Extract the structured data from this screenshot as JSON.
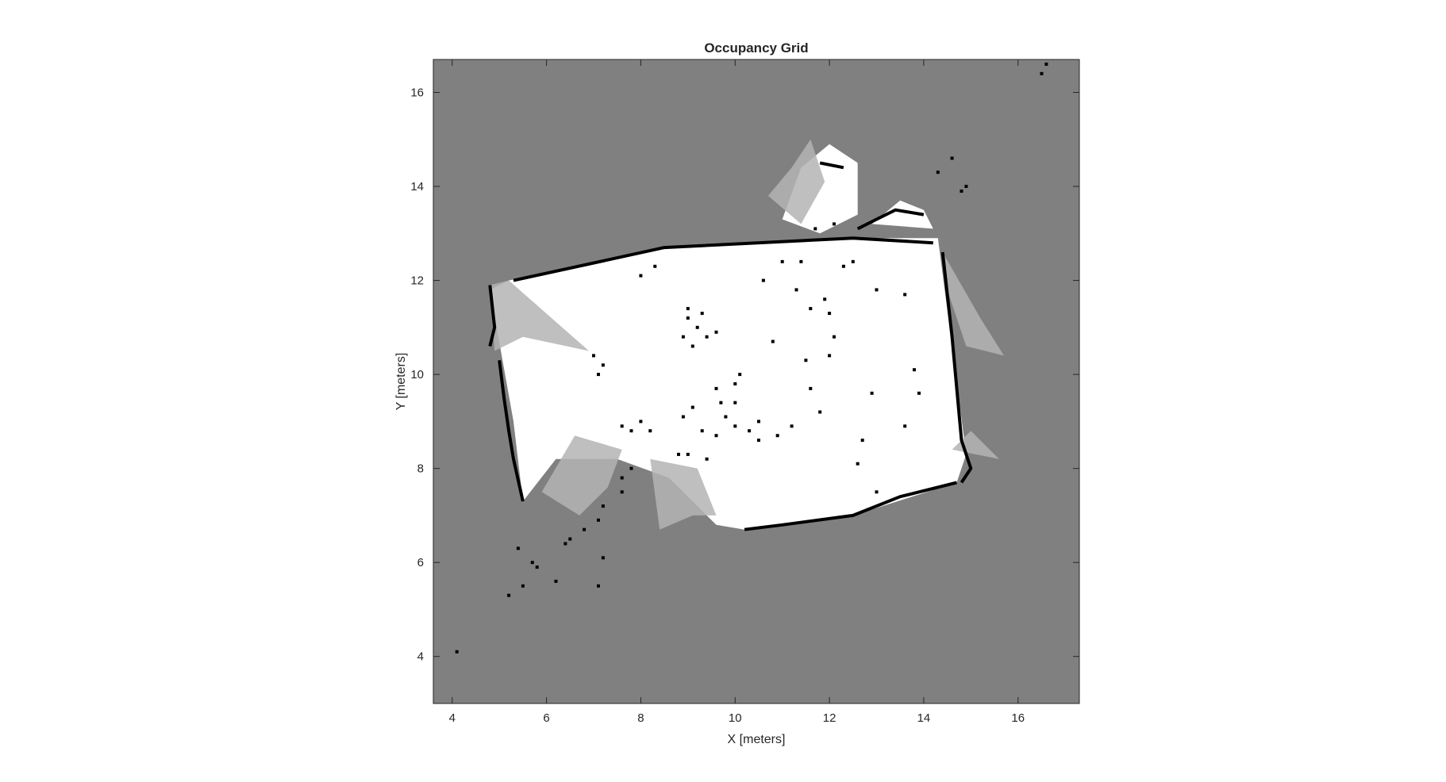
{
  "chart_data": {
    "type": "heatmap",
    "title": "Occupancy Grid",
    "xlabel": "X [meters]",
    "ylabel": "Y [meters]",
    "xlim": [
      3.6,
      17.3
    ],
    "ylim": [
      3.0,
      16.7
    ],
    "xticks": [
      4,
      6,
      8,
      10,
      12,
      14,
      16
    ],
    "yticks": [
      4,
      6,
      8,
      10,
      12,
      14,
      16
    ],
    "xtick_labels": [
      "4",
      "6",
      "8",
      "10",
      "12",
      "14",
      "16"
    ],
    "ytick_labels": [
      "4",
      "6",
      "8",
      "10",
      "12",
      "14",
      "16"
    ],
    "grid": false,
    "colormap": "gray (white = free, gray = unknown, black = occupied)",
    "unknown_occupancy": 0.5,
    "colors": {
      "unknown": "#808080",
      "free": "#ffffff",
      "occupied": "#000000",
      "partial": "#b4b4b4"
    },
    "free_region": [
      [
        5.2,
        12.0
      ],
      [
        8.5,
        12.7
      ],
      [
        12.5,
        12.9
      ],
      [
        14.3,
        12.9
      ],
      [
        14.9,
        8.3
      ],
      [
        14.7,
        7.7
      ],
      [
        12.5,
        7.0
      ],
      [
        10.2,
        6.7
      ],
      [
        9.6,
        6.8
      ],
      [
        8.6,
        7.8
      ],
      [
        7.5,
        8.2
      ],
      [
        6.2,
        8.2
      ],
      [
        5.5,
        7.3
      ],
      [
        5.3,
        9.0
      ],
      [
        4.8,
        11.8
      ]
    ],
    "free_patches": [
      [
        [
          11.0,
          13.3
        ],
        [
          11.4,
          14.4
        ],
        [
          12.0,
          14.9
        ],
        [
          12.6,
          14.5
        ],
        [
          12.6,
          13.4
        ],
        [
          11.8,
          13.0
        ]
      ],
      [
        [
          12.9,
          13.2
        ],
        [
          13.5,
          13.7
        ],
        [
          14.0,
          13.5
        ],
        [
          14.2,
          13.1
        ]
      ]
    ],
    "partial_regions": [
      [
        [
          4.8,
          11.9
        ],
        [
          5.2,
          12.0
        ],
        [
          6.9,
          10.5
        ],
        [
          5.5,
          10.8
        ],
        [
          4.9,
          10.5
        ]
      ],
      [
        [
          10.7,
          13.8
        ],
        [
          11.2,
          14.4
        ],
        [
          11.6,
          15.0
        ],
        [
          11.9,
          14.1
        ],
        [
          11.4,
          13.2
        ]
      ],
      [
        [
          14.4,
          12.6
        ],
        [
          15.2,
          11.2
        ],
        [
          15.7,
          10.4
        ],
        [
          14.9,
          10.6
        ],
        [
          14.5,
          11.8
        ]
      ],
      [
        [
          14.6,
          8.4
        ],
        [
          15.6,
          8.2
        ],
        [
          15.0,
          8.8
        ]
      ],
      [
        [
          6.6,
          8.7
        ],
        [
          5.9,
          7.5
        ],
        [
          6.7,
          7.0
        ],
        [
          7.3,
          7.6
        ],
        [
          7.6,
          8.4
        ]
      ],
      [
        [
          8.2,
          8.2
        ],
        [
          8.4,
          6.7
        ],
        [
          9.1,
          7.0
        ],
        [
          9.6,
          7.0
        ],
        [
          9.2,
          8.0
        ]
      ]
    ],
    "occupied_walls": [
      [
        [
          5.3,
          12.0
        ],
        [
          8.5,
          12.7
        ],
        [
          12.5,
          12.9
        ],
        [
          14.2,
          12.8
        ]
      ],
      [
        [
          14.4,
          12.6
        ],
        [
          14.6,
          10.8
        ],
        [
          14.8,
          8.6
        ],
        [
          15.0,
          8.0
        ],
        [
          14.8,
          7.7
        ]
      ],
      [
        [
          14.7,
          7.7
        ],
        [
          13.5,
          7.4
        ],
        [
          12.5,
          7.0
        ],
        [
          11.0,
          6.8
        ],
        [
          10.2,
          6.7
        ]
      ],
      [
        [
          5.0,
          10.3
        ],
        [
          5.1,
          9.5
        ],
        [
          5.2,
          8.8
        ],
        [
          5.3,
          8.2
        ],
        [
          5.5,
          7.3
        ]
      ],
      [
        [
          4.8,
          11.9
        ],
        [
          4.9,
          11.0
        ],
        [
          4.8,
          10.6
        ]
      ],
      [
        [
          12.6,
          13.1
        ],
        [
          13.0,
          13.3
        ],
        [
          13.4,
          13.5
        ],
        [
          14.0,
          13.4
        ]
      ],
      [
        [
          11.8,
          14.5
        ],
        [
          12.3,
          14.4
        ]
      ]
    ],
    "occupied_cells": [
      [
        4.1,
        4.1
      ],
      [
        5.2,
        5.3
      ],
      [
        5.5,
        5.5
      ],
      [
        5.4,
        6.3
      ],
      [
        5.8,
        5.9
      ],
      [
        5.7,
        6.0
      ],
      [
        6.2,
        5.6
      ],
      [
        6.4,
        6.4
      ],
      [
        6.5,
        6.5
      ],
      [
        7.2,
        6.1
      ],
      [
        7.1,
        5.5
      ],
      [
        6.8,
        6.7
      ],
      [
        7.1,
        6.9
      ],
      [
        7.2,
        7.2
      ],
      [
        7.6,
        7.8
      ],
      [
        7.8,
        8.0
      ],
      [
        7.6,
        7.5
      ],
      [
        16.5,
        16.4
      ],
      [
        16.6,
        16.6
      ],
      [
        14.6,
        14.6
      ],
      [
        14.3,
        14.3
      ],
      [
        14.9,
        14.0
      ],
      [
        14.8,
        13.9
      ],
      [
        7.1,
        10.0
      ],
      [
        7.2,
        10.2
      ],
      [
        7.0,
        10.4
      ],
      [
        9.0,
        11.4
      ],
      [
        9.2,
        11.0
      ],
      [
        9.4,
        10.8
      ],
      [
        9.1,
        10.6
      ],
      [
        9.6,
        10.9
      ],
      [
        8.9,
        10.8
      ],
      [
        9.0,
        11.2
      ],
      [
        9.3,
        11.3
      ],
      [
        10.1,
        10.0
      ],
      [
        10.0,
        9.8
      ],
      [
        9.7,
        9.4
      ],
      [
        9.1,
        9.3
      ],
      [
        8.9,
        9.1
      ],
      [
        9.3,
        8.8
      ],
      [
        9.6,
        8.7
      ],
      [
        10.0,
        8.9
      ],
      [
        10.3,
        8.8
      ],
      [
        10.5,
        8.6
      ],
      [
        11.2,
        8.9
      ],
      [
        11.8,
        9.2
      ],
      [
        11.6,
        9.7
      ],
      [
        12.0,
        10.4
      ],
      [
        12.1,
        10.8
      ],
      [
        12.0,
        11.3
      ],
      [
        11.6,
        11.4
      ],
      [
        11.3,
        11.8
      ],
      [
        11.9,
        11.6
      ],
      [
        12.3,
        12.3
      ],
      [
        13.0,
        11.8
      ],
      [
        13.6,
        11.7
      ],
      [
        12.9,
        9.6
      ],
      [
        13.9,
        9.6
      ],
      [
        13.6,
        8.9
      ],
      [
        12.7,
        8.6
      ],
      [
        12.6,
        8.1
      ],
      [
        13.0,
        7.5
      ],
      [
        8.0,
        12.1
      ],
      [
        8.3,
        12.3
      ],
      [
        10.6,
        12.0
      ],
      [
        11.0,
        12.4
      ],
      [
        10.8,
        10.7
      ],
      [
        11.5,
        10.3
      ],
      [
        10.0,
        9.4
      ],
      [
        9.6,
        9.7
      ],
      [
        8.2,
        8.8
      ],
      [
        8.8,
        8.3
      ],
      [
        9.0,
        8.3
      ],
      [
        9.4,
        8.2
      ],
      [
        8.0,
        9.0
      ],
      [
        7.6,
        8.9
      ],
      [
        7.8,
        8.8
      ],
      [
        11.7,
        13.1
      ],
      [
        12.1,
        13.2
      ],
      [
        12.5,
        12.4
      ],
      [
        11.4,
        12.4
      ],
      [
        9.8,
        9.1
      ],
      [
        10.5,
        9.0
      ],
      [
        13.8,
        10.1
      ],
      [
        10.9,
        8.7
      ]
    ]
  }
}
